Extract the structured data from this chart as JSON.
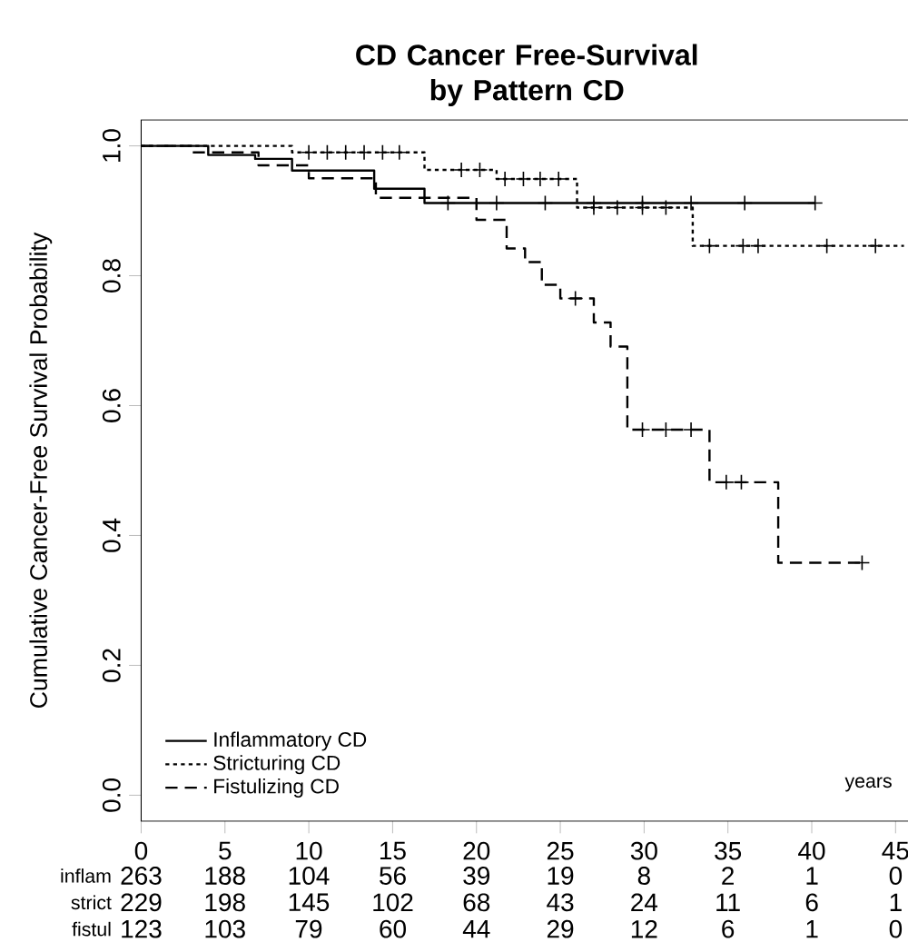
{
  "chart_data": {
    "type": "step",
    "title": "CD Cancer Free-Survival\nby Pattern CD",
    "ylabel": "Cumulative Cancer-Free Survival Probability",
    "xlim": [
      0,
      46
    ],
    "ylim": [
      -0.04,
      1.04
    ],
    "xticks": [
      0,
      5,
      10,
      15,
      20,
      25,
      30,
      35,
      40,
      45
    ],
    "yticks": [
      {
        "value": 0,
        "label": "0.0"
      },
      0.2,
      0.4,
      0.6,
      0.8,
      {
        "value": 1,
        "label": "1.0"
      }
    ],
    "legend": "bottom left",
    "series": [
      {
        "name": "Inflammatory CD",
        "color": "#000000",
        "line_style": "solid",
        "x": [
          0,
          4.0,
          6.8,
          9.0,
          13.9,
          16.9,
          40.2
        ],
        "values": [
          1,
          0.986,
          0.98,
          0.962,
          0.934,
          0.912,
          0.912
        ]
      },
      {
        "name": "Stricturing CD",
        "color": "#000000",
        "line_style": "dotted",
        "x": [
          0,
          9.0,
          16.9,
          21.2,
          26.0,
          32.9,
          45.5
        ],
        "values": [
          1,
          0.99,
          0.963,
          0.949,
          0.905,
          0.846,
          0.846
        ]
      },
      {
        "name": "Fistulizing CD",
        "color": "#000000",
        "line_style": "dashed",
        "x": [
          0,
          3,
          7,
          10,
          14,
          20,
          21.8,
          22.9,
          23.9,
          25.0,
          27.0,
          28.0,
          29.0,
          33.9,
          38.0,
          43.0
        ],
        "values": [
          1,
          0.99,
          0.97,
          0.95,
          0.92,
          0.886,
          0.842,
          0.821,
          0.786,
          0.765,
          0.728,
          0.691,
          0.563,
          0.482,
          0.358,
          0.358
        ]
      },
      {
        "type": "scatter",
        "marker": "cross",
        "color": "#000000",
        "x": [
          18.3,
          21.2,
          24.1,
          27.0,
          29.9,
          32.8,
          36.0,
          40.2
        ],
        "values": [
          0.912,
          0.912,
          0.912,
          0.912,
          0.912,
          0.912,
          0.912,
          0.912
        ]
      },
      {
        "type": "scatter",
        "marker": "cross",
        "color": "#000000",
        "x": [
          10.0,
          11.1,
          12.2,
          13.3,
          14.4,
          15.4,
          19.1,
          20.2,
          21.7,
          22.8,
          23.8,
          24.9,
          27.0,
          28.4,
          29.9,
          31.3,
          33.9,
          35.9,
          36.8,
          40.9,
          43.8
        ],
        "values": [
          0.99,
          0.99,
          0.99,
          0.99,
          0.99,
          0.99,
          0.963,
          0.963,
          0.949,
          0.949,
          0.949,
          0.949,
          0.905,
          0.905,
          0.905,
          0.905,
          0.846,
          0.846,
          0.846,
          0.846,
          0.846
        ]
      },
      {
        "type": "scatter",
        "marker": "cross",
        "color": "#000000",
        "x": [
          25.9,
          29.9,
          31.3,
          32.8,
          34.9,
          35.8,
          43.0
        ],
        "values": [
          0.765,
          0.563,
          0.563,
          0.563,
          0.482,
          0.482,
          0.358
        ]
      }
    ],
    "annotations": [
      "years",
      "inflam",
      "263",
      "188",
      "104",
      "56",
      "39",
      "19",
      "8",
      "2",
      "1",
      "0",
      "strict",
      "229",
      "198",
      "145",
      "102",
      "68",
      "43",
      "24",
      "11",
      "6",
      "1",
      "fistul",
      "123",
      "103",
      "79",
      "60",
      "44",
      "29",
      "12",
      "6",
      "1",
      "0"
    ]
  }
}
